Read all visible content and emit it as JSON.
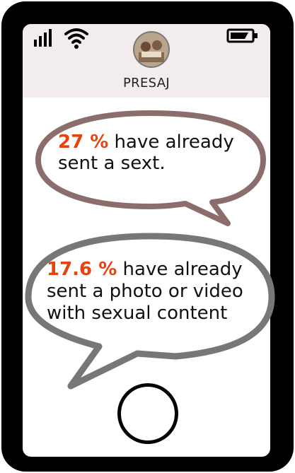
{
  "contact": {
    "name": "PRESAJ"
  },
  "bubbles": [
    {
      "stat": "27 %",
      "line1_rest": " have already",
      "line2": "sent a sext."
    },
    {
      "stat": "17.6 %",
      "line1_rest": " have already",
      "line2": "sent a photo or video",
      "line3": "with sexual content"
    }
  ],
  "colors": {
    "stat": "#e8420e",
    "bubble1_border": "#8b6e6b",
    "bubble2_border": "#777777",
    "header_bg": "#f2edec"
  },
  "icons": [
    "signal-icon",
    "wifi-icon",
    "battery-icon"
  ]
}
